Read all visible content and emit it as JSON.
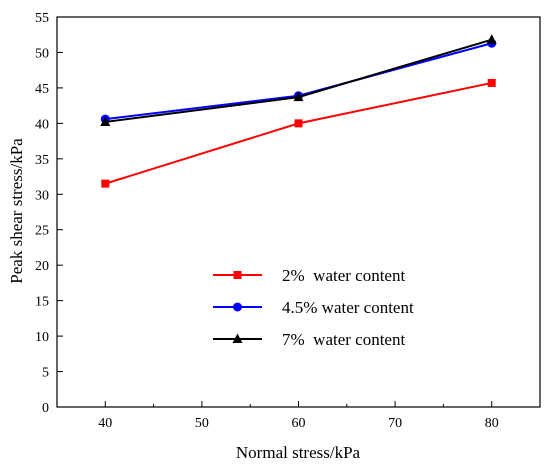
{
  "chart_data": {
    "type": "line",
    "xlabel": "Normal stress/kPa",
    "ylabel": "Peak shear stress/kPa",
    "xlim": [
      35,
      85
    ],
    "ylim": [
      0,
      55
    ],
    "xticks": [
      40,
      50,
      60,
      70,
      80
    ],
    "yticks": [
      0,
      5,
      10,
      15,
      20,
      25,
      30,
      35,
      40,
      45,
      50,
      55
    ],
    "x": [
      40,
      60,
      80
    ],
    "grid": false,
    "legend_position": "lower-center",
    "series": [
      {
        "name": "2%  water content",
        "values": [
          31.5,
          40.0,
          45.7
        ],
        "color": "#ff0000",
        "marker": "square"
      },
      {
        "name": "4.5% water content",
        "values": [
          40.6,
          43.9,
          51.3
        ],
        "color": "#0000ff",
        "marker": "circle"
      },
      {
        "name": "7%  water content",
        "values": [
          40.2,
          43.7,
          51.8
        ],
        "color": "#000000",
        "marker": "triangle"
      }
    ]
  }
}
